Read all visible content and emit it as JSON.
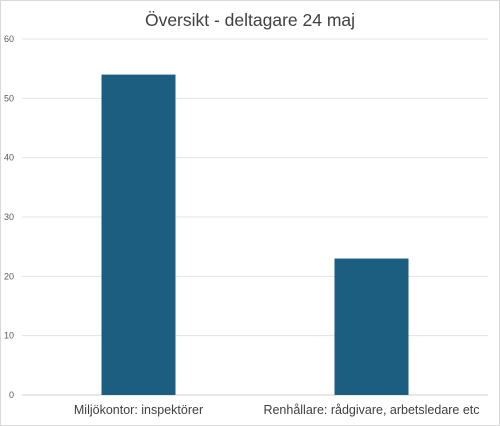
{
  "chart_data": {
    "type": "bar",
    "title": "Översikt - deltagare 24 maj",
    "categories": [
      "Miljökontor: inspektörer",
      "Renhållare: rådgivare, arbetsledare etc"
    ],
    "values": [
      54,
      23
    ],
    "ylim": [
      0,
      60
    ],
    "yticks": [
      0,
      10,
      20,
      30,
      40,
      50,
      60
    ],
    "grid": true,
    "legend": "none",
    "bar_color": "#1b5e80",
    "grid_color": "#e3e3e3"
  }
}
